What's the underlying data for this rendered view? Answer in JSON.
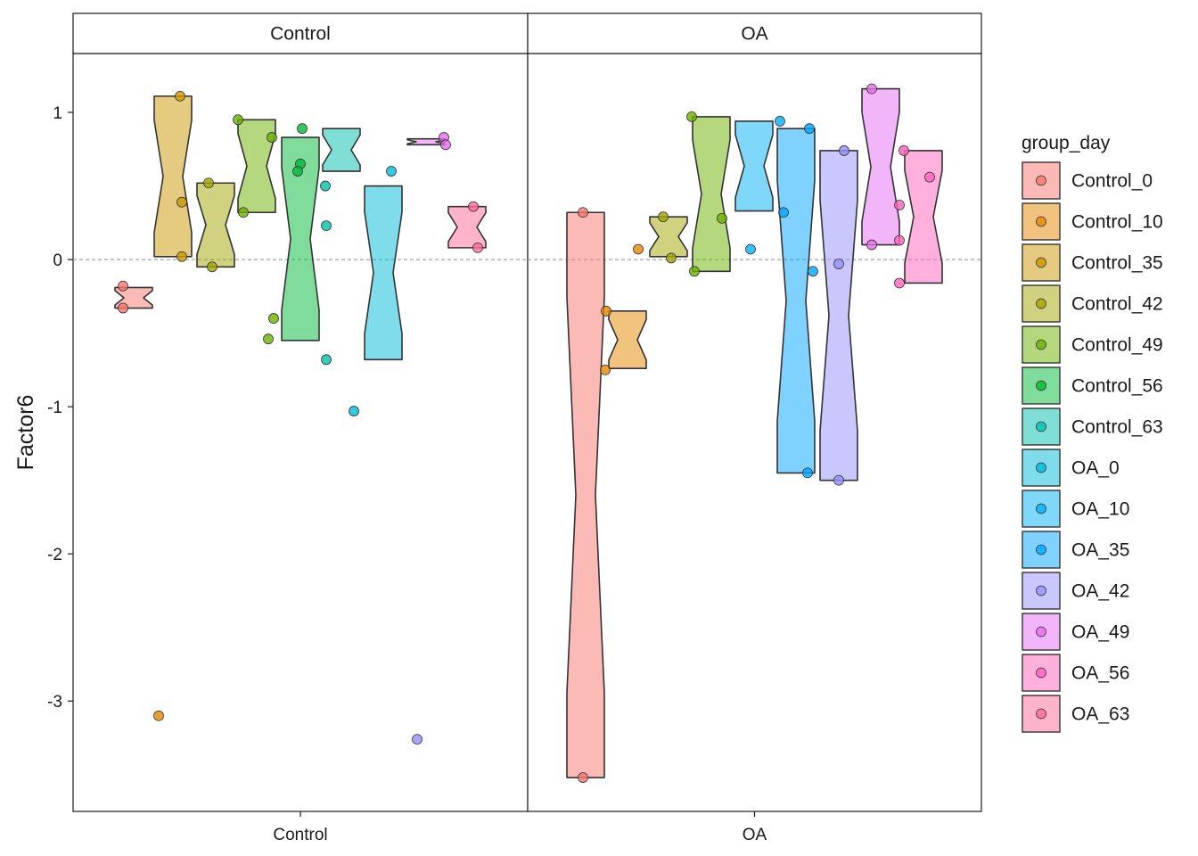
{
  "chart_data": {
    "type": "boxplot-notched-faceted",
    "facets": [
      "Control",
      "OA"
    ],
    "x_ticks": [
      "Control",
      "OA"
    ],
    "ylabel": "Factor6",
    "y_ticks": [
      "1",
      "0",
      "-1",
      "-2",
      "-3"
    ],
    "ylim": [
      -3.75,
      1.4
    ],
    "reference_line_y": 0,
    "legend": {
      "title": "group_day",
      "placement": "right",
      "entries": [
        "Control_0",
        "Control_10",
        "Control_35",
        "Control_42",
        "Control_49",
        "Control_56",
        "Control_63",
        "OA_0",
        "OA_10",
        "OA_35",
        "OA_42",
        "OA_49",
        "OA_56",
        "OA_63"
      ]
    },
    "colors": {
      "Control_0": "#F8766D",
      "Control_10": "#E58700",
      "Control_35": "#C99800",
      "Control_42": "#A3A500",
      "Control_49": "#6BB100",
      "Control_56": "#00BA38",
      "Control_63": "#00C0AF",
      "OA_0": "#00BCD8",
      "OA_10": "#00B0F6",
      "OA_35": "#00A5FF",
      "OA_42": "#9590FF",
      "OA_49": "#E76BF3",
      "OA_56": "#FF62BC",
      "OA_63": "#FF6A98"
    },
    "series": [
      {
        "name": "Control_0",
        "facet": "Control",
        "box": {
          "upper": -0.19,
          "lower": -0.33
        },
        "points": [
          -0.18,
          -0.33
        ]
      },
      {
        "name": "Control_10",
        "facet": "Control",
        "box": null,
        "points": [
          -3.1
        ]
      },
      {
        "name": "Control_35",
        "facet": "Control",
        "box": {
          "upper": 1.11,
          "lower": 0.02
        },
        "points": [
          1.11,
          0.39,
          0.02
        ]
      },
      {
        "name": "Control_42",
        "facet": "Control",
        "box": {
          "upper": 0.52,
          "lower": -0.05
        },
        "points": [
          0.52,
          -0.05
        ]
      },
      {
        "name": "Control_49",
        "facet": "Control",
        "box": {
          "upper": 0.95,
          "lower": 0.32
        },
        "points": [
          0.95,
          0.83,
          0.32,
          -0.4,
          -0.54
        ]
      },
      {
        "name": "Control_56",
        "facet": "Control",
        "box": {
          "upper": 0.83,
          "lower": -0.55
        },
        "points": [
          0.89,
          0.65,
          0.6
        ]
      },
      {
        "name": "Control_63",
        "facet": "Control",
        "box": {
          "upper": 0.89,
          "lower": 0.6
        },
        "points": [
          0.5,
          0.23,
          -0.68
        ]
      },
      {
        "name": "OA_0",
        "facet": "Control",
        "box": {
          "upper": 0.5,
          "lower": -0.68
        },
        "points": [
          0.6,
          -1.03
        ]
      },
      {
        "name": "OA_42",
        "facet": "Control",
        "box": null,
        "points": [
          -3.26
        ]
      },
      {
        "name": "OA_49",
        "facet": "Control",
        "box": {
          "upper": 0.82,
          "lower": 0.78
        },
        "points": [
          0.83,
          0.78
        ]
      },
      {
        "name": "OA_63",
        "facet": "Control",
        "box": {
          "upper": 0.36,
          "lower": 0.08
        },
        "points": [
          0.36,
          0.08
        ]
      },
      {
        "name": "Control_0",
        "facet": "OA",
        "box": {
          "upper": 0.32,
          "lower": -3.52
        },
        "points": [
          0.32,
          -3.52
        ]
      },
      {
        "name": "Control_10",
        "facet": "OA",
        "box": {
          "upper": -0.35,
          "lower": -0.74
        },
        "points": [
          -0.35,
          -0.75,
          0.07
        ]
      },
      {
        "name": "Control_42",
        "facet": "OA",
        "box": {
          "upper": 0.29,
          "lower": 0.02
        },
        "points": [
          0.29,
          0.01
        ]
      },
      {
        "name": "Control_49",
        "facet": "OA",
        "box": {
          "upper": 0.97,
          "lower": -0.08
        },
        "points": [
          0.97,
          0.28,
          -0.08
        ]
      },
      {
        "name": "OA_10",
        "facet": "OA",
        "box": {
          "upper": 0.94,
          "lower": 0.33
        },
        "points": [
          0.94,
          0.07
        ]
      },
      {
        "name": "OA_35",
        "facet": "OA",
        "box": {
          "upper": 0.89,
          "lower": -1.45
        },
        "points": [
          0.89,
          0.32,
          -0.08,
          -1.45
        ]
      },
      {
        "name": "OA_42",
        "facet": "OA",
        "box": {
          "upper": 0.74,
          "lower": -1.5
        },
        "points": [
          0.74,
          -0.03,
          -1.5
        ]
      },
      {
        "name": "OA_49",
        "facet": "OA",
        "box": {
          "upper": 1.16,
          "lower": 0.1
        },
        "points": [
          1.16,
          0.1
        ]
      },
      {
        "name": "OA_56",
        "facet": "OA",
        "box": {
          "upper": 0.74,
          "lower": -0.16
        },
        "points": [
          0.74,
          0.56,
          0.37,
          0.13,
          -0.16
        ]
      }
    ]
  }
}
